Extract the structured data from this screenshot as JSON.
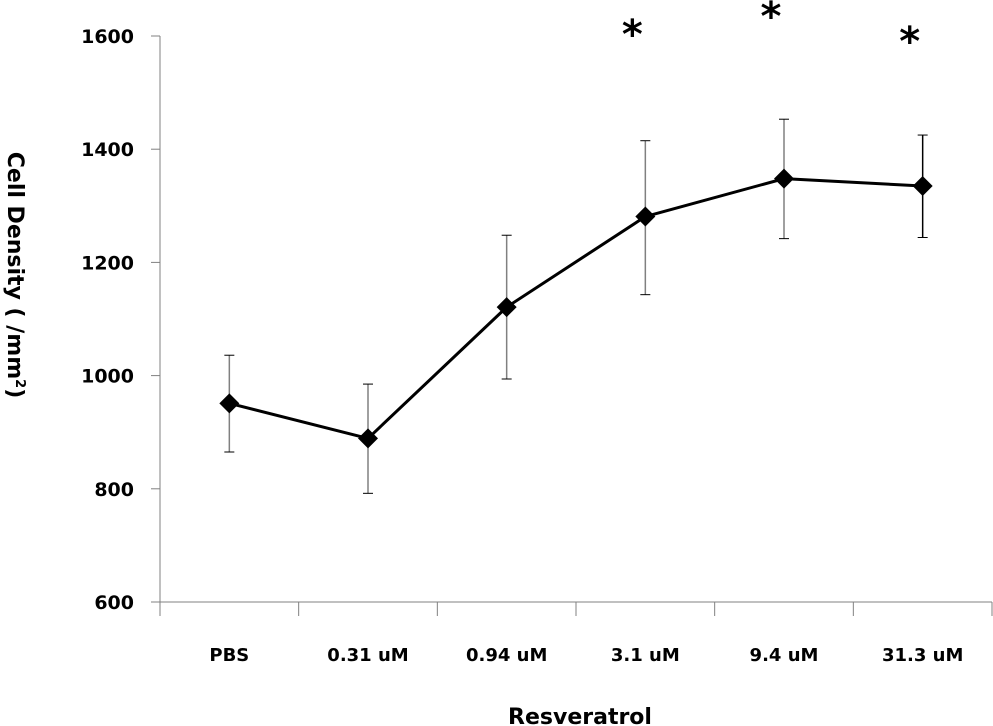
{
  "chart_data": {
    "type": "line",
    "title": "",
    "xlabel": "Resveratrol",
    "ylabel": "Cell Density ( /mm",
    "ylabel_superscript": "2",
    "ylabel_close": ")",
    "ylim": [
      600,
      1600
    ],
    "yticks": [
      600,
      800,
      1000,
      1200,
      1400,
      1600
    ],
    "ytick_labels": [
      "600",
      "800",
      "1000",
      "1200",
      "1400",
      "1600"
    ],
    "categories": [
      "PBS",
      "0.31 uM",
      "0.94 uM",
      "3.1 uM",
      "9.4 uM",
      "31.3 uM"
    ],
    "grid": false,
    "legend": "none",
    "series": [
      {
        "name": "Cell Density",
        "values": [
          951,
          889,
          1121,
          1281,
          1348,
          1335
        ],
        "error_upper": [
          1036,
          985,
          1248,
          1415,
          1453,
          1425
        ],
        "error_lower": [
          865,
          792,
          994,
          1143,
          1242,
          1244
        ],
        "marker": "diamond",
        "color": "#000000"
      }
    ],
    "annotations": [
      {
        "category": "3.1 uM",
        "text": "*"
      },
      {
        "category": "9.4 uM",
        "text": "*"
      },
      {
        "category": "31.3 uM",
        "text": "*"
      }
    ],
    "colors": {
      "axis": "#808080",
      "error_bar": "#808080",
      "error_bar_last": "#000000",
      "line": "#000000"
    }
  }
}
